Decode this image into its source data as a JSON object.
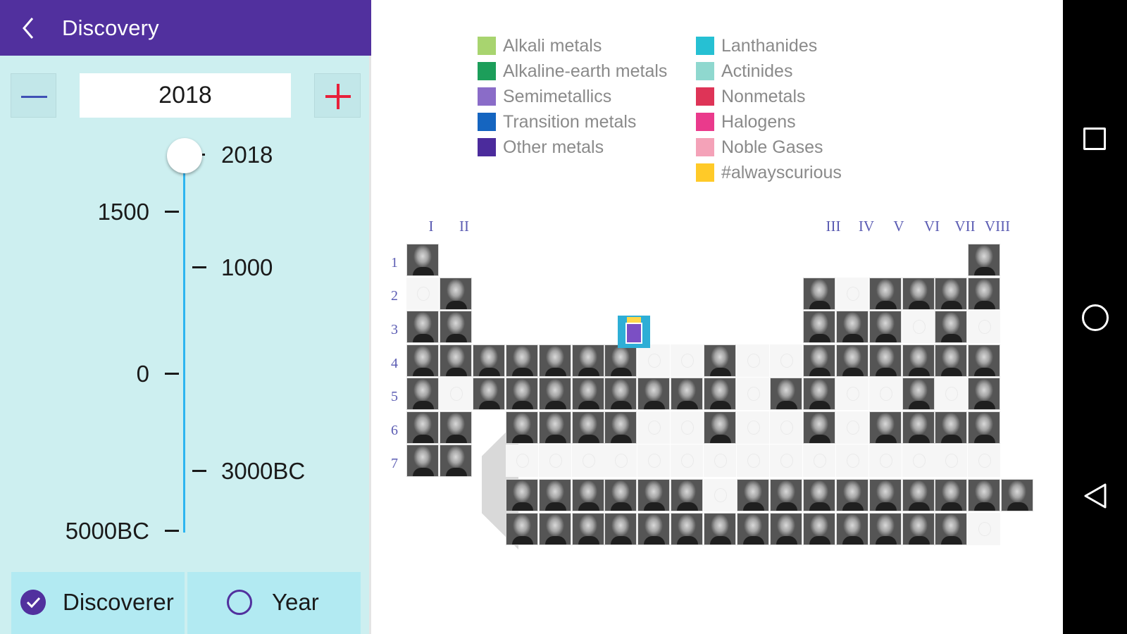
{
  "appbar": {
    "title": "Discovery",
    "back_icon": "chevron-left-icon",
    "color": "#51309e"
  },
  "year_control": {
    "value": "2018",
    "minus_icon": "minus-icon",
    "plus_icon": "plus-icon"
  },
  "timeline": {
    "current_label": "2018",
    "ticks": [
      {
        "label": "1500",
        "side": "left"
      },
      {
        "label": "1000",
        "side": "right"
      },
      {
        "label": "0",
        "side": "left"
      },
      {
        "label": "3000BC",
        "side": "right"
      },
      {
        "label": "5000BC",
        "side": "left"
      }
    ],
    "track_color": "#2eb5f0"
  },
  "mode": {
    "options": [
      {
        "label": "Discoverer",
        "selected": true
      },
      {
        "label": "Year",
        "selected": false
      }
    ]
  },
  "legend": {
    "left": [
      {
        "label": "Alkali metals",
        "color": "#a8d46f"
      },
      {
        "label": "Alkaline-earth metals",
        "color": "#1c9e5a"
      },
      {
        "label": "Semimetallics",
        "color": "#8a6cc8"
      },
      {
        "label": "Transition metals",
        "color": "#1565c0"
      },
      {
        "label": "Other metals",
        "color": "#4b2b9c"
      }
    ],
    "right": [
      {
        "label": "Lanthanides",
        "color": "#26c0d3"
      },
      {
        "label": "Actinides",
        "color": "#8fd8cf"
      },
      {
        "label": "Nonmetals",
        "color": "#de3457"
      },
      {
        "label": "Halogens",
        "color": "#ea3a8c"
      },
      {
        "label": "Noble Gases",
        "color": "#f4a2b8"
      },
      {
        "label": "#alwayscurious",
        "color": "#ffca28"
      }
    ]
  },
  "periodic_table": {
    "groups": [
      "I",
      "II",
      "III",
      "IV",
      "V",
      "VI",
      "VII",
      "VIII"
    ],
    "periods": [
      "1",
      "2",
      "3",
      "4",
      "5",
      "6",
      "7"
    ]
  },
  "nav_bar": {
    "recent_icon": "square-icon",
    "home_icon": "circle-icon",
    "back_icon": "triangle-back-icon"
  }
}
